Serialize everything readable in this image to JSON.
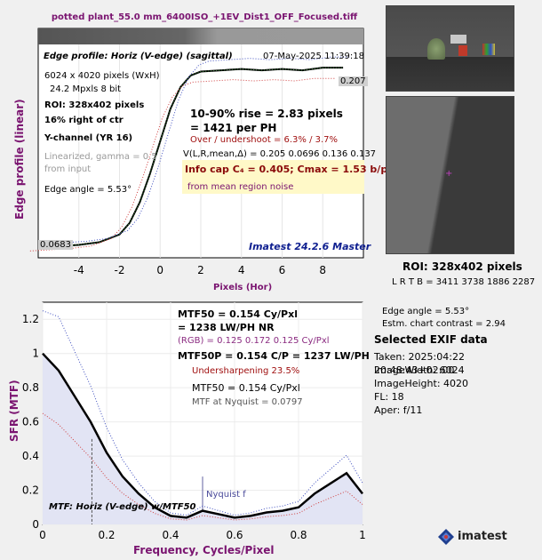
{
  "header": {
    "file_title": "potted plant_55.0 mm_6400ISO_+1EV_Dist1_OFF_Focused.tiff"
  },
  "edge_plot": {
    "ylabel": "Edge profile (linear)",
    "xlabel": "Pixels (Hor)",
    "profile_title": "Edge profile: Horiz (V-edge) (sagittal)",
    "date": "07-May-2025 11:39:18",
    "size_line1": "6024 x 4020 pixels (WxH)",
    "size_line2": "24.2 Mpxls   8 bit",
    "roi": "ROI:  328x402 pixels",
    "position": "16% right of ctr",
    "channel": "Y-channel  (YR 16)",
    "linearized1": "Linearized, gamma = 0.5",
    "linearized2": "from input",
    "edge_angle": "Edge angle = 5.53°",
    "rise": "10-90% rise = 2.83 pixels",
    "per_ph": "=  1421 per PH",
    "overshoot": "Over / undershoot =  6.3% /  3.7%",
    "vline": "V(L,R,mean,Δ) = 0.205  0.0696  0.136  0.137",
    "infocap": "Info cap C₄ = 0.405;  Cmax = 1.53 b/p;",
    "noise": "from mean region noise",
    "left_value": "0.0683",
    "right_value": "0.207",
    "brand": "Imatest 24.2.6 Master",
    "xticks": [
      "-4",
      "-2",
      "0",
      "2",
      "4",
      "6",
      "8"
    ]
  },
  "mtf_plot": {
    "ylabel": "SFR (MTF)",
    "xlabel": "Frequency, Cycles/Pixel",
    "mtf50": "MTF50 = 0.154 Cy/Pxl",
    "lwph": "= 1238 LW/PH  NR",
    "rgb": "(RGB) = 0.125  0.172  0.125 Cy/Pxl",
    "mtf50p": "MTF50P = 0.154 C/P = 1237 LW/PH",
    "undersharp": "Undersharpening 23.5%",
    "mtf50b": "MTF50 = 0.154 Cy/Pxl",
    "nyq": "MTF at Nyquist = 0.0797",
    "nyquist_label": "Nyquist f",
    "legend": "MTF: Horiz (V-edge) w/MTF50",
    "xticks": [
      "0",
      "0.2",
      "0.4",
      "0.6",
      "0.8",
      "1"
    ],
    "yticks": [
      "0",
      "0.2",
      "0.4",
      "0.6",
      "0.8",
      "1",
      "1.2"
    ]
  },
  "right_panel": {
    "roi_title": "ROI:  328x402 pixels",
    "lrtb": "L R  T B = 3411 3738   1886 2287",
    "edge_angle": "Edge angle = 5.53°",
    "contrast": "Estm. chart contrast = 2.94",
    "exif_title": "Selected EXIF data",
    "taken": "Taken: 2025:04:22 20:48:43+02:00",
    "width": "ImageWidth:  6024",
    "height": "ImageHeight:  4020",
    "fl": "FL:    18",
    "aper": "Aper:  f/11",
    "logo": "imatest"
  },
  "chart_data": [
    {
      "type": "line",
      "title": "Edge profile: Horiz (V-edge) (sagittal)",
      "xlabel": "Pixels (Hor)",
      "ylabel": "Edge profile (linear)",
      "xlim": [
        -6,
        10
      ],
      "x": [
        -6,
        -5,
        -4,
        -3,
        -2,
        -1.5,
        -1,
        -0.5,
        0,
        0.5,
        1,
        1.5,
        2,
        3,
        4,
        5,
        6,
        7,
        8,
        9
      ],
      "series": [
        {
          "name": "Y",
          "color": "#000000",
          "values": [
            0.068,
            0.069,
            0.07,
            0.072,
            0.078,
            0.087,
            0.103,
            0.125,
            0.15,
            0.175,
            0.192,
            0.201,
            0.204,
            0.205,
            0.206,
            0.205,
            0.206,
            0.205,
            0.207,
            0.207
          ]
        }
      ]
    },
    {
      "type": "line",
      "title": "MTF: Horiz (V-edge)",
      "xlabel": "Frequency, Cycles/Pixel",
      "ylabel": "SFR (MTF)",
      "xlim": [
        0,
        1
      ],
      "ylim": [
        0,
        1.3
      ],
      "x": [
        0,
        0.05,
        0.1,
        0.15,
        0.2,
        0.25,
        0.3,
        0.35,
        0.4,
        0.45,
        0.5,
        0.55,
        0.6,
        0.65,
        0.7,
        0.75,
        0.8,
        0.85,
        0.9,
        0.95,
        1.0
      ],
      "series": [
        {
          "name": "Y",
          "color": "#000000",
          "values": [
            1.0,
            0.9,
            0.75,
            0.6,
            0.42,
            0.28,
            0.18,
            0.1,
            0.05,
            0.04,
            0.08,
            0.06,
            0.04,
            0.05,
            0.07,
            0.08,
            0.1,
            0.18,
            0.24,
            0.3,
            0.18
          ]
        }
      ],
      "mtf50": 0.154,
      "nyquist": 0.5
    }
  ]
}
